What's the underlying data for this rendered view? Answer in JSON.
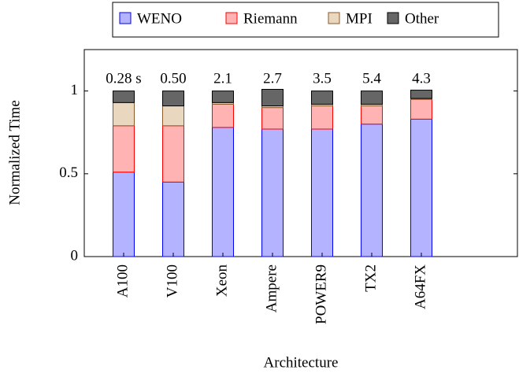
{
  "chart_data": {
    "type": "stacked_bar",
    "xlabel": "Architecture",
    "ylabel": "Normalized Time",
    "categories": [
      "A100",
      "V100",
      "Xeon",
      "Ampere",
      "POWER9",
      "TX2",
      "A64FX"
    ],
    "annotations": [
      "0.28 s",
      "0.50",
      "2.1",
      "2.7",
      "3.5",
      "5.4",
      "4.3"
    ],
    "series": [
      {
        "name": "WENO",
        "color": "#b3b3ff",
        "stroke": "#0000ff",
        "values": [
          0.51,
          0.45,
          0.78,
          0.77,
          0.77,
          0.8,
          0.83
        ]
      },
      {
        "name": "Riemann",
        "color": "#ffb3b3",
        "stroke": "#ff0000",
        "values": [
          0.28,
          0.34,
          0.14,
          0.13,
          0.14,
          0.11,
          0.12
        ]
      },
      {
        "name": "MPI",
        "color": "#ead7c0",
        "stroke": "#8b5a2b",
        "values": [
          0.14,
          0.12,
          0.01,
          0.01,
          0.01,
          0.01,
          0.005
        ]
      },
      {
        "name": "Other",
        "color": "#666666",
        "stroke": "#000000",
        "values": [
          0.07,
          0.09,
          0.07,
          0.1,
          0.08,
          0.08,
          0.05
        ]
      }
    ],
    "ylim": [
      0,
      1.25
    ],
    "yticks": [
      0,
      0.5,
      1
    ]
  }
}
